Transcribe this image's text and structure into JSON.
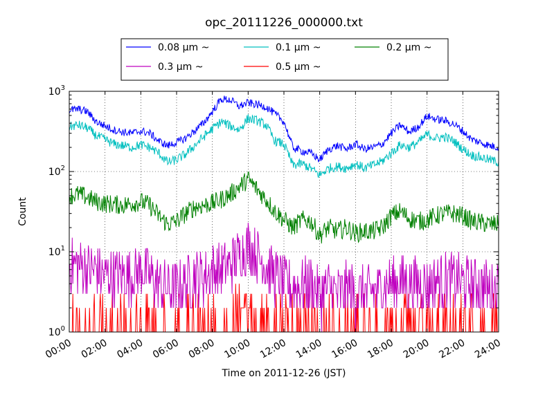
{
  "chart_data": {
    "type": "line",
    "title": "opc_20111226_000000.txt",
    "xlabel": "Time on 2011-12-26 (JST)",
    "ylabel": "Count",
    "x_ticks": [
      "00:00",
      "02:00",
      "04:00",
      "06:00",
      "08:00",
      "10:00",
      "12:00",
      "14:00",
      "16:00",
      "18:00",
      "20:00",
      "22:00",
      "24:00"
    ],
    "xlim_hours": [
      0,
      24
    ],
    "y_scale": "log",
    "ylim": [
      1,
      1000
    ],
    "y_ticks": [
      {
        "base": "10",
        "exp": "0"
      },
      {
        "base": "10",
        "exp": "1"
      },
      {
        "base": "10",
        "exp": "2"
      },
      {
        "base": "10",
        "exp": "3"
      }
    ],
    "grid": true,
    "legend_position": "top",
    "x_hours": [
      0,
      0.5,
      1,
      1.5,
      2,
      2.5,
      3,
      3.5,
      4,
      4.5,
      5,
      5.5,
      6,
      6.5,
      7,
      7.5,
      8,
      8.5,
      9,
      9.5,
      10,
      10.5,
      11,
      11.5,
      12,
      12.5,
      13,
      13.5,
      14,
      14.5,
      15,
      15.5,
      16,
      16.5,
      17,
      17.5,
      18,
      18.5,
      19,
      19.5,
      20,
      20.5,
      21,
      21.5,
      22,
      22.5,
      23,
      23.5,
      24
    ],
    "series": [
      {
        "name": "0.08 μm ~",
        "color": "#0000ff",
        "values": [
          580,
          600,
          560,
          420,
          370,
          330,
          310,
          300,
          320,
          300,
          240,
          210,
          230,
          260,
          320,
          400,
          560,
          800,
          780,
          650,
          720,
          680,
          640,
          520,
          420,
          200,
          180,
          170,
          140,
          190,
          210,
          190,
          220,
          190,
          200,
          220,
          300,
          380,
          310,
          360,
          490,
          450,
          430,
          390,
          320,
          250,
          230,
          210,
          200
        ]
      },
      {
        "name": "0.1 μm ~",
        "color": "#00bfbf",
        "values": [
          360,
          380,
          350,
          280,
          250,
          220,
          210,
          200,
          215,
          200,
          170,
          130,
          140,
          165,
          210,
          270,
          340,
          420,
          370,
          330,
          460,
          430,
          380,
          240,
          220,
          120,
          125,
          110,
          90,
          110,
          115,
          110,
          125,
          110,
          120,
          135,
          170,
          215,
          200,
          230,
          290,
          260,
          270,
          240,
          190,
          160,
          150,
          140,
          130
        ]
      },
      {
        "name": "0.2 μm ~",
        "color": "#008000",
        "values": [
          50,
          52,
          48,
          42,
          40,
          39,
          38,
          40,
          42,
          38,
          28,
          22,
          24,
          30,
          36,
          38,
          40,
          45,
          52,
          65,
          80,
          60,
          45,
          32,
          25,
          20,
          25,
          24,
          16,
          20,
          18,
          20,
          17,
          18,
          18,
          20,
          28,
          32,
          26,
          24,
          25,
          28,
          30,
          30,
          28,
          24,
          23,
          22,
          22
        ]
      },
      {
        "name": "0.3 μm ~",
        "color": "#bf00bf",
        "values": [
          7,
          7,
          6,
          6,
          5,
          5,
          5,
          5,
          6,
          5,
          4,
          3.5,
          3.5,
          4,
          5,
          5,
          6,
          6,
          7,
          9,
          12,
          9,
          7,
          5,
          4,
          3.5,
          4,
          4,
          3,
          3.5,
          3,
          3.5,
          3,
          3,
          3.2,
          3.5,
          4,
          4.5,
          4,
          4,
          4,
          4.2,
          4.5,
          4.5,
          4.2,
          4,
          3.8,
          3.5,
          3.5
        ]
      },
      {
        "name": "0.5 μm ~",
        "color": "#ff0000",
        "values": [
          1.4,
          1.4,
          1.3,
          1.3,
          1.2,
          1.2,
          1.2,
          1.2,
          1.3,
          1.2,
          1.1,
          1.1,
          1.1,
          1.2,
          1.3,
          1.3,
          1.4,
          1.5,
          1.5,
          1.7,
          2.0,
          1.7,
          1.5,
          1.3,
          1.2,
          1.1,
          1.1,
          1.1,
          1.1,
          1.1,
          1.1,
          1.1,
          1.1,
          1.1,
          1.1,
          1.1,
          1.2,
          1.2,
          1.2,
          1.2,
          1.2,
          1.2,
          1.2,
          1.2,
          1.2,
          1.2,
          1.1,
          1.1,
          1.1
        ]
      }
    ]
  }
}
